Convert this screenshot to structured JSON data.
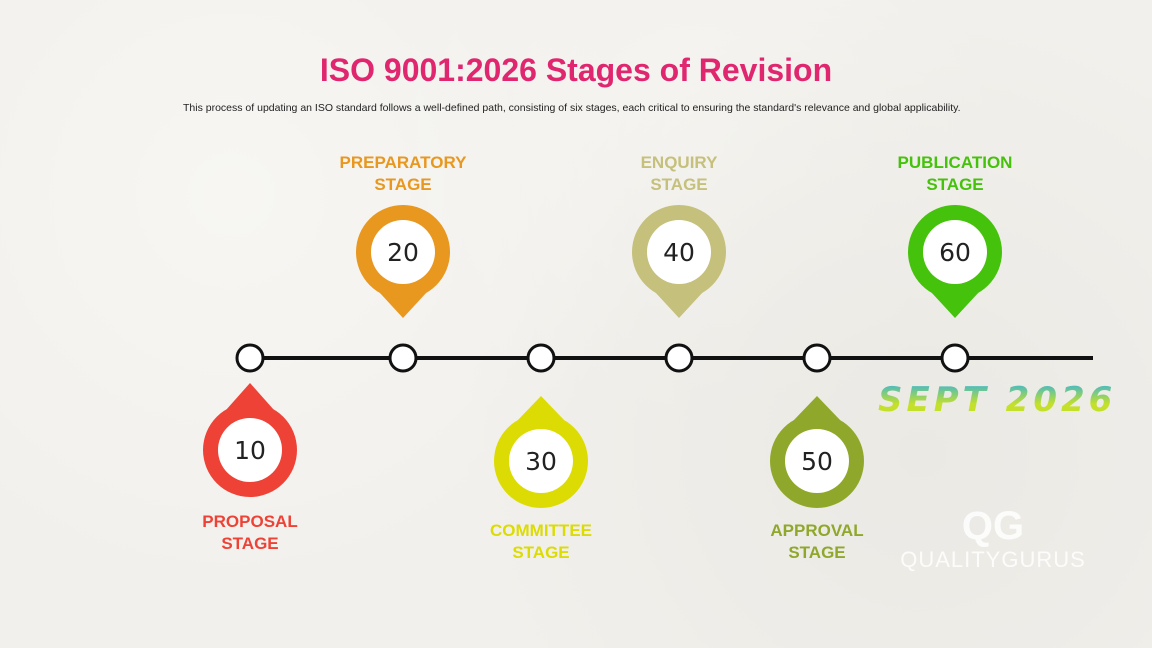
{
  "title": "ISO 9001:2026 Stages of Revision",
  "subtitle": "This process of updating an ISO standard follows a well-defined path, consisting of six stages, each critical to ensuring the standard's relevance and global applicability.",
  "stages": [
    {
      "number": "10",
      "label_1": "PROPOSAL",
      "label_2": "STAGE",
      "color": "#ee4236",
      "position": "below"
    },
    {
      "number": "20",
      "label_1": "PREPARATORY",
      "label_2": "STAGE",
      "color": "#e8971f",
      "position": "above"
    },
    {
      "number": "30",
      "label_1": "COMMITTEE",
      "label_2": "STAGE",
      "color": "#dcdc04",
      "position": "below"
    },
    {
      "number": "40",
      "label_1": "ENQUIRY",
      "label_2": "STAGE",
      "color": "#c5c07c",
      "position": "above"
    },
    {
      "number": "50",
      "label_1": "APPROVAL",
      "label_2": "STAGE",
      "color": "#8fa82b",
      "position": "below"
    },
    {
      "number": "60",
      "label_1": "PUBLICATION",
      "label_2": "STAGE",
      "color": "#45c20b",
      "position": "above"
    }
  ],
  "date_banner": "SEPT 2026",
  "logo": {
    "mark": "QG",
    "name": "QUALITYGURUS"
  }
}
